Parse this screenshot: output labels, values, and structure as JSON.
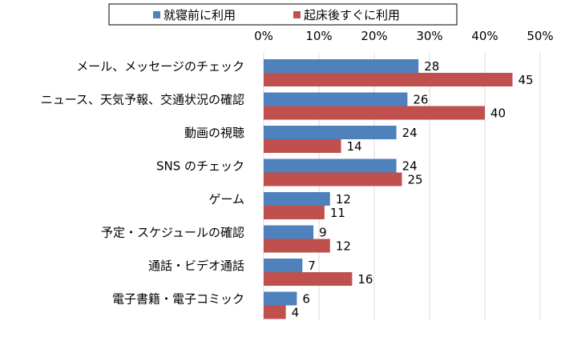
{
  "chart_data": {
    "type": "bar",
    "orientation": "horizontal",
    "categories": [
      "メール、メッセージのチェック",
      "ニュース、天気予報、交通状況の確認",
      "動画の視聴",
      "SNS のチェック",
      "ゲーム",
      "予定・スケジュールの確認",
      "通話・ビデオ通話",
      "電子書籍・電子コミック"
    ],
    "series": [
      {
        "name": "就寝前に利用",
        "values": [
          28,
          26,
          24,
          24,
          12,
          9,
          7,
          6
        ],
        "color": "#4f81bd"
      },
      {
        "name": "起床後すぐに利用",
        "values": [
          45,
          40,
          14,
          25,
          11,
          12,
          16,
          4
        ],
        "color": "#c0504d"
      }
    ],
    "xlim": [
      0,
      50
    ],
    "ticks": [
      "0%",
      "10%",
      "20%",
      "30%",
      "40%",
      "50%"
    ],
    "tick_values": [
      0,
      10,
      20,
      30,
      40,
      50
    ],
    "grid": true,
    "legend_position": "top",
    "axis_position": "top"
  }
}
